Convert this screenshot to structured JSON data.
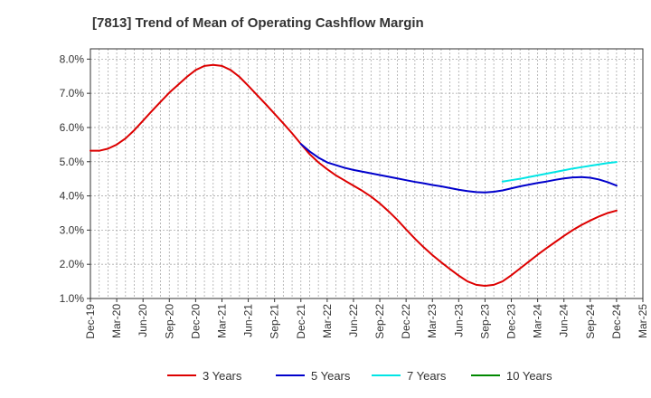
{
  "chart_data": {
    "type": "line",
    "title": "[7813]  Trend of Mean of Operating Cashflow Margin",
    "xlabel": "",
    "ylabel": "",
    "x_ticks": [
      "Dec-19",
      "Mar-20",
      "Jun-20",
      "Sep-20",
      "Dec-20",
      "Mar-21",
      "Jun-21",
      "Sep-21",
      "Dec-21",
      "Mar-22",
      "Jun-22",
      "Sep-22",
      "Dec-22",
      "Mar-23",
      "Jun-23",
      "Sep-23",
      "Dec-23",
      "Mar-24",
      "Jun-24",
      "Sep-24",
      "Dec-24",
      "Mar-25"
    ],
    "y_ticks": [
      "1.0%",
      "2.0%",
      "3.0%",
      "4.0%",
      "5.0%",
      "6.0%",
      "7.0%",
      "8.0%"
    ],
    "ylim": [
      1.0,
      8.3
    ],
    "grid": true,
    "legend_position": "bottom",
    "series": [
      {
        "name": "3 Years",
        "color": "#dd0000",
        "x": [
          "Dec-19",
          "Jan-20",
          "Feb-20",
          "Mar-20",
          "Apr-20",
          "May-20",
          "Jun-20",
          "Jul-20",
          "Aug-20",
          "Sep-20",
          "Oct-20",
          "Nov-20",
          "Dec-20",
          "Jan-21",
          "Feb-21",
          "Mar-21",
          "Apr-21",
          "May-21",
          "Jun-21",
          "Jul-21",
          "Aug-21",
          "Sep-21",
          "Oct-21",
          "Nov-21",
          "Dec-21",
          "Jan-22",
          "Feb-22",
          "Mar-22",
          "Apr-22",
          "May-22",
          "Jun-22",
          "Jul-22",
          "Aug-22",
          "Sep-22",
          "Oct-22",
          "Nov-22",
          "Dec-22",
          "Jan-23",
          "Feb-23",
          "Mar-23",
          "Apr-23",
          "May-23",
          "Jun-23",
          "Jul-23",
          "Aug-23",
          "Sep-23",
          "Oct-23",
          "Nov-23",
          "Dec-23",
          "Jan-24",
          "Feb-24",
          "Mar-24",
          "Apr-24",
          "May-24",
          "Jun-24",
          "Jul-24",
          "Aug-24",
          "Sep-24",
          "Oct-24",
          "Nov-24",
          "Dec-24"
        ],
        "values": [
          5.32,
          5.32,
          5.38,
          5.5,
          5.68,
          5.92,
          6.2,
          6.48,
          6.75,
          7.02,
          7.25,
          7.48,
          7.68,
          7.8,
          7.83,
          7.8,
          7.68,
          7.48,
          7.22,
          6.95,
          6.68,
          6.4,
          6.12,
          5.83,
          5.52,
          5.22,
          4.98,
          4.78,
          4.6,
          4.45,
          4.3,
          4.15,
          3.98,
          3.78,
          3.55,
          3.3,
          3.02,
          2.75,
          2.5,
          2.27,
          2.06,
          1.86,
          1.67,
          1.5,
          1.4,
          1.37,
          1.4,
          1.5,
          1.68,
          1.88,
          2.08,
          2.28,
          2.47,
          2.65,
          2.83,
          3.0,
          3.15,
          3.28,
          3.4,
          3.5,
          3.57
        ]
      },
      {
        "name": "5 Years",
        "color": "#0000cc",
        "x": [
          "Dec-21",
          "Jan-22",
          "Feb-22",
          "Mar-22",
          "Apr-22",
          "May-22",
          "Jun-22",
          "Jul-22",
          "Aug-22",
          "Sep-22",
          "Oct-22",
          "Nov-22",
          "Dec-22",
          "Jan-23",
          "Feb-23",
          "Mar-23",
          "Apr-23",
          "May-23",
          "Jun-23",
          "Jul-23",
          "Aug-23",
          "Sep-23",
          "Oct-23",
          "Nov-23",
          "Dec-23",
          "Jan-24",
          "Feb-24",
          "Mar-24",
          "Apr-24",
          "May-24",
          "Jun-24",
          "Jul-24",
          "Aug-24",
          "Sep-24",
          "Oct-24",
          "Nov-24",
          "Dec-24"
        ],
        "values": [
          5.52,
          5.3,
          5.12,
          4.98,
          4.9,
          4.82,
          4.76,
          4.71,
          4.66,
          4.61,
          4.56,
          4.51,
          4.46,
          4.41,
          4.37,
          4.32,
          4.28,
          4.23,
          4.18,
          4.14,
          4.11,
          4.1,
          4.12,
          4.16,
          4.22,
          4.28,
          4.33,
          4.38,
          4.42,
          4.47,
          4.51,
          4.54,
          4.55,
          4.53,
          4.48,
          4.4,
          4.3
        ]
      },
      {
        "name": "7 Years",
        "color": "#00e5e5",
        "x": [
          "Nov-23",
          "Dec-23",
          "Jan-24",
          "Feb-24",
          "Mar-24",
          "Apr-24",
          "May-24",
          "Jun-24",
          "Jul-24",
          "Aug-24",
          "Sep-24",
          "Oct-24",
          "Nov-24",
          "Dec-24"
        ],
        "values": [
          4.42,
          4.46,
          4.5,
          4.55,
          4.6,
          4.65,
          4.7,
          4.75,
          4.8,
          4.84,
          4.88,
          4.92,
          4.96,
          4.99
        ]
      },
      {
        "name": "10 Years",
        "color": "#008800",
        "x": [],
        "values": []
      }
    ]
  }
}
